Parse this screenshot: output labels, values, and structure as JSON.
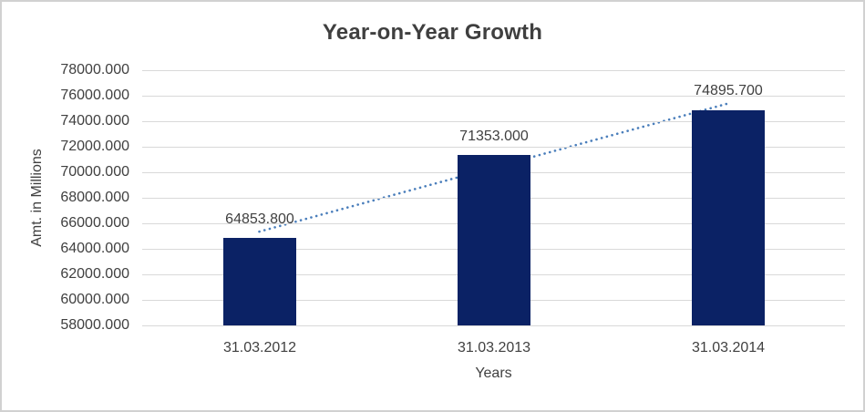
{
  "chart_data": {
    "type": "bar",
    "title": "Year-on-Year Growth",
    "xlabel": "Years",
    "ylabel": "Amt. in Millions",
    "categories": [
      "31.03.2012",
      "31.03.2013",
      "31.03.2014"
    ],
    "values": [
      64853.8,
      71353.0,
      74895.7
    ],
    "data_labels": [
      "64853.800",
      "71353.000",
      "74895.700"
    ],
    "ylim": [
      58000,
      78000
    ],
    "ytick_step": 2000,
    "ytick_labels": [
      "78000.000",
      "76000.000",
      "74000.000",
      "72000.000",
      "70000.000",
      "68000.000",
      "66000.000",
      "64000.000",
      "62000.000",
      "60000.000",
      "58000.000"
    ],
    "grid": true,
    "legend": "none",
    "trendline": {
      "type": "linear",
      "style": "dotted"
    },
    "colors": {
      "bar": "#0b2265",
      "trendline": "#4a7ebb",
      "gridline": "#d9d9d9",
      "text": "#404040",
      "title": "#3f3f3f",
      "border": "#d1d1d1",
      "background": "#ffffff"
    }
  }
}
